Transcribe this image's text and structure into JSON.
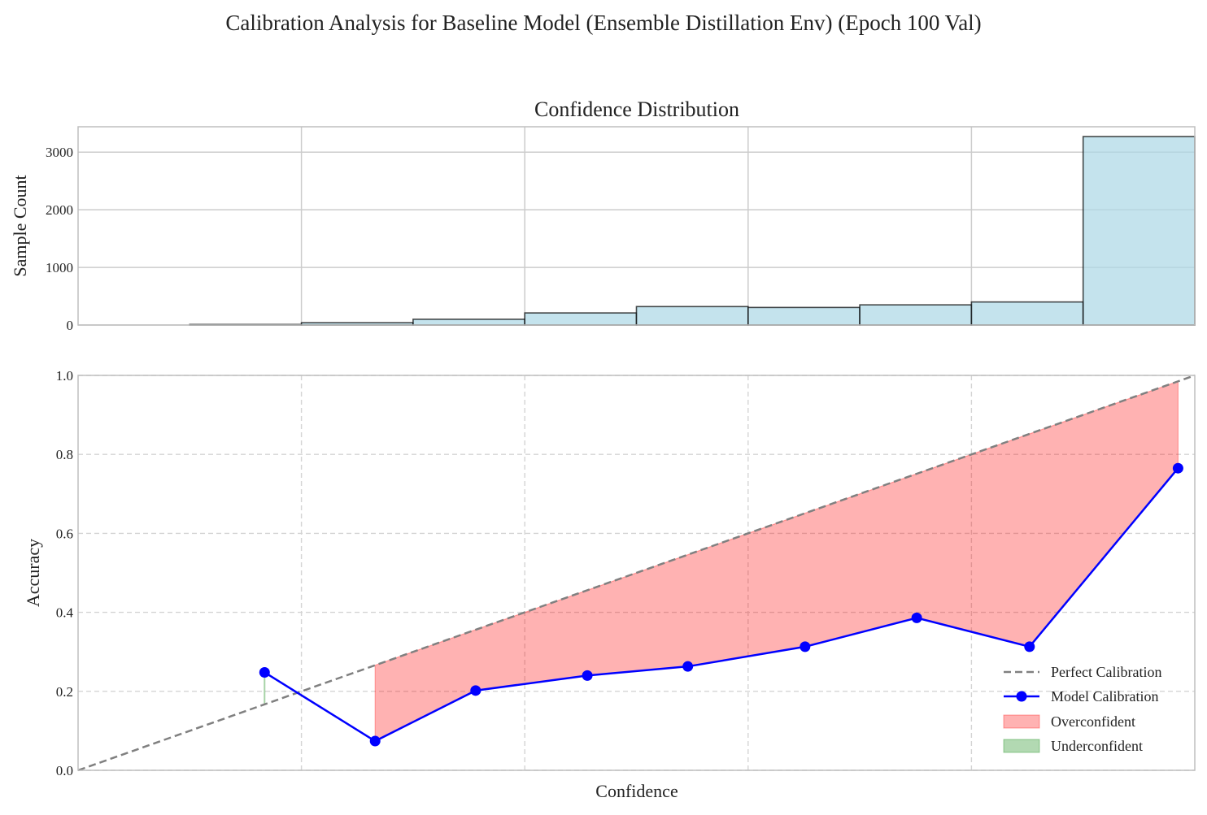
{
  "figure": {
    "suptitle": "Calibration Analysis for Baseline Model (Ensemble Distillation Env) (Epoch 100 Val)"
  },
  "chart_data": [
    {
      "type": "bar",
      "title": "Confidence Distribution",
      "xlabel": "",
      "ylabel": "Sample Count",
      "bin_edges": [
        0.0,
        0.1,
        0.2,
        0.3,
        0.4,
        0.5,
        0.6,
        0.7,
        0.8,
        0.9,
        1.0
      ],
      "values": [
        0,
        10,
        40,
        100,
        210,
        320,
        305,
        350,
        400,
        3270
      ],
      "ylim": [
        0,
        3440
      ],
      "yticks": [
        0,
        1000,
        2000,
        3000
      ],
      "xlim": [
        0,
        1
      ],
      "grid": true,
      "colors": {
        "bar_fill": "#add8e6",
        "bar_edge": "#000000"
      }
    },
    {
      "type": "line",
      "title": "",
      "xlabel": "Confidence",
      "ylabel": "Accuracy",
      "xlim": [
        0,
        1
      ],
      "ylim": [
        0,
        1
      ],
      "yticks": [
        0.0,
        0.2,
        0.4,
        0.6,
        0.8,
        1.0
      ],
      "grid": true,
      "legend_position": "bottom-right",
      "series": [
        {
          "name": "Perfect Calibration",
          "style": "dashed",
          "color": "#808080",
          "x": [
            0.0,
            1.0
          ],
          "y": [
            0.0,
            1.0
          ]
        },
        {
          "name": "Model Calibration",
          "style": "solid-markers",
          "color": "#0000ff",
          "x": [
            0.167,
            0.266,
            0.356,
            0.456,
            0.546,
            0.651,
            0.751,
            0.852,
            0.985
          ],
          "y": [
            0.248,
            0.074,
            0.202,
            0.24,
            0.263,
            0.313,
            0.386,
            0.313,
            0.765
          ]
        }
      ],
      "fills": [
        {
          "name": "Overconfident",
          "color": "#ff0000",
          "alpha": 0.3
        },
        {
          "name": "Underconfident",
          "color": "#008000",
          "alpha": 0.3
        }
      ]
    }
  ]
}
